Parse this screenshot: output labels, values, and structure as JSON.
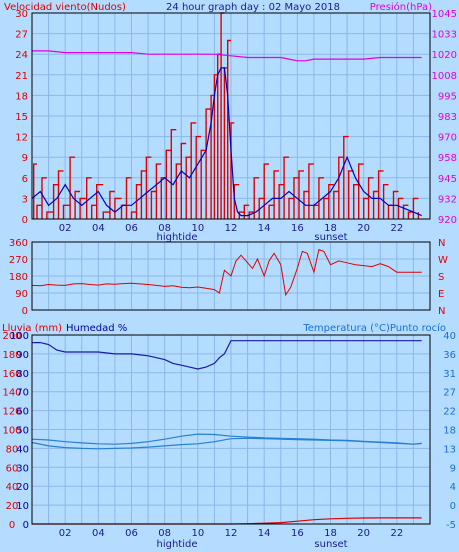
{
  "chart_data": [
    {
      "type": "line",
      "title": "24 hour graph day : 02 Mayo 2018",
      "left_label": "Velocidad viento(Nudos)",
      "right_label": "Presión(hPa)",
      "left_ticks": [
        "0",
        "3",
        "6",
        "9",
        "12",
        "15",
        "18",
        "21",
        "24",
        "27",
        "30"
      ],
      "right_ticks": [
        "920",
        "932",
        "945",
        "958",
        "970",
        "983",
        "995",
        "1008",
        "1020",
        "1033",
        "1045"
      ],
      "left_range": [
        0,
        30
      ],
      "right_range": [
        920,
        1045
      ],
      "x_ticks": [
        "02",
        "04",
        "06",
        "08",
        "10",
        "12",
        "14",
        "16",
        "18",
        "20",
        "22"
      ],
      "x_markers": {
        "hightide": "hightide",
        "sunset": "sunset"
      },
      "x_range": [
        0,
        24
      ],
      "series": [
        {
          "color": "#e00000",
          "axis": "left",
          "style": "gust-bars",
          "x": [
            0.1,
            0.3,
            0.6,
            0.9,
            1.3,
            1.6,
            1.9,
            2.3,
            2.6,
            2.9,
            3.3,
            3.6,
            3.9,
            4.3,
            4.7,
            5.0,
            5.4,
            5.7,
            6.0,
            6.3,
            6.6,
            6.9,
            7.2,
            7.5,
            7.8,
            8.1,
            8.4,
            8.7,
            9.0,
            9.3,
            9.6,
            9.9,
            10.2,
            10.5,
            10.8,
            11.0,
            11.2,
            11.4,
            11.6,
            11.8,
            12.0,
            12.2,
            12.5,
            12.8,
            13.1,
            13.4,
            13.7,
            14.0,
            14.3,
            14.6,
            14.9,
            15.2,
            15.5,
            15.8,
            16.1,
            16.4,
            16.7,
            17.0,
            17.3,
            17.6,
            17.9,
            18.2,
            18.5,
            18.8,
            19.1,
            19.4,
            19.7,
            20.0,
            20.3,
            20.6,
            20.9,
            21.2,
            21.5,
            21.8,
            22.1,
            22.4,
            22.7,
            23.0,
            23.3
          ],
          "y": [
            8,
            2,
            6,
            1,
            5,
            7,
            2,
            9,
            4,
            3,
            6,
            2,
            5,
            1,
            4,
            3,
            2,
            6,
            1,
            5,
            7,
            9,
            4,
            8,
            6,
            10,
            13,
            8,
            11,
            9,
            14,
            12,
            10,
            16,
            18,
            21,
            24,
            30,
            22,
            26,
            14,
            5,
            1,
            2,
            1,
            6,
            3,
            8,
            2,
            7,
            5,
            9,
            3,
            6,
            7,
            4,
            8,
            2,
            6,
            3,
            5,
            4,
            9,
            12,
            7,
            5,
            8,
            3,
            6,
            4,
            7,
            5,
            2,
            4,
            3,
            2,
            1,
            3,
            1
          ]
        },
        {
          "color": "#0000c0",
          "axis": "left",
          "style": "line",
          "x": [
            0,
            0.5,
            1.0,
            1.5,
            2.0,
            2.5,
            3.0,
            3.5,
            4.0,
            4.5,
            5.0,
            5.5,
            6.0,
            6.5,
            7.0,
            7.5,
            8.0,
            8.5,
            9.0,
            9.5,
            10.0,
            10.5,
            10.8,
            11.0,
            11.2,
            11.4,
            11.6,
            11.8,
            12.0,
            12.2,
            12.4,
            12.6,
            13.0,
            13.5,
            14.0,
            14.5,
            15.0,
            15.5,
            16.0,
            16.5,
            17.0,
            17.5,
            18.0,
            18.5,
            19.0,
            19.5,
            20.0,
            20.5,
            21.0,
            21.5,
            22.0,
            22.5,
            23.0,
            23.5
          ],
          "y": [
            3,
            4,
            2,
            3,
            5,
            3,
            2,
            3,
            4,
            2,
            1,
            2,
            2,
            3,
            4,
            5,
            6,
            5,
            7,
            6,
            8,
            10,
            14,
            18,
            21,
            22,
            22,
            18,
            10,
            3,
            1,
            0.5,
            0.5,
            1,
            2,
            3,
            3,
            4,
            3,
            2,
            2,
            3,
            4,
            6,
            9,
            6,
            4,
            3,
            3,
            2,
            2,
            1.5,
            1,
            0.5
          ]
        },
        {
          "color": "#e000e0",
          "axis": "right",
          "style": "line",
          "x": [
            0,
            1,
            2,
            3,
            4,
            5,
            6,
            7,
            8,
            9,
            10,
            11,
            12,
            13,
            14,
            15,
            15.5,
            16,
            16.5,
            17,
            18,
            19,
            20,
            21,
            22,
            23,
            23.5
          ],
          "y": [
            1022,
            1022,
            1021,
            1021,
            1021,
            1021,
            1021,
            1020,
            1020,
            1020,
            1020,
            1020,
            1019,
            1018,
            1018,
            1018,
            1017,
            1016,
            1016,
            1017,
            1017,
            1017,
            1017,
            1018,
            1018,
            1018,
            1018
          ]
        }
      ]
    },
    {
      "type": "line",
      "left_ticks": [
        "0",
        "90",
        "180",
        "270",
        "360"
      ],
      "left_range": [
        0,
        360
      ],
      "right_ticks": [
        "N",
        "E",
        "S",
        "W",
        "N"
      ],
      "x_range": [
        0,
        24
      ],
      "series": [
        {
          "color": "#e00000",
          "axis": "left",
          "style": "line",
          "x": [
            0,
            0.5,
            1,
            1.5,
            2,
            2.5,
            3,
            3.5,
            4,
            4.5,
            5,
            5.5,
            6,
            6.5,
            7,
            7.5,
            8,
            8.5,
            9,
            9.5,
            10,
            10.5,
            11,
            11.3,
            11.6,
            12,
            12.3,
            12.6,
            13,
            13.3,
            13.6,
            14,
            14.3,
            14.6,
            15,
            15.3,
            15.6,
            16,
            16.3,
            16.6,
            17,
            17.3,
            17.6,
            18,
            18.5,
            19,
            19.5,
            20,
            20.5,
            21,
            21.5,
            22,
            22.5,
            23,
            23.5
          ],
          "y": [
            130,
            128,
            135,
            132,
            130,
            138,
            140,
            135,
            132,
            138,
            136,
            140,
            142,
            138,
            135,
            130,
            125,
            128,
            120,
            118,
            122,
            115,
            108,
            90,
            210,
            180,
            260,
            290,
            250,
            220,
            270,
            180,
            260,
            300,
            240,
            80,
            120,
            220,
            310,
            300,
            200,
            320,
            310,
            240,
            260,
            250,
            240,
            235,
            230,
            245,
            230,
            200,
            200,
            200,
            200
          ]
        }
      ]
    },
    {
      "type": "line",
      "left_label_red": "Lluvia (mm)",
      "left_label_blue": "Humedad %",
      "right_label": "Temperatura (°C)Punto rocío",
      "rain_ticks": [
        "0",
        "20",
        "40",
        "60",
        "80",
        "100",
        "120",
        "140",
        "160",
        "180",
        "200"
      ],
      "rain_range": [
        0,
        200
      ],
      "hum_ticks": [
        "0",
        "10",
        "20",
        "30",
        "40",
        "50",
        "60",
        "70",
        "80",
        "90",
        "100"
      ],
      "hum_range": [
        0,
        100
      ],
      "temp_ticks": [
        "-5",
        "0",
        "4",
        "9",
        "13",
        "18",
        "22",
        "27",
        "31",
        "36",
        "40"
      ],
      "temp_range": [
        -5,
        40
      ],
      "x_ticks": [
        "02",
        "04",
        "06",
        "08",
        "10",
        "12",
        "14",
        "16",
        "18",
        "20",
        "22"
      ],
      "x_markers": {
        "hightide": "hightide",
        "sunset": "sunset"
      },
      "x_range": [
        0,
        24
      ],
      "series": [
        {
          "color": "#1a1aa0",
          "axis": "humidity",
          "style": "line",
          "x": [
            0,
            0.5,
            1,
            1.5,
            2,
            3,
            4,
            5,
            6,
            7,
            8,
            8.5,
            9,
            9.5,
            10,
            10.5,
            11,
            11.3,
            11.6,
            12,
            13,
            14,
            15,
            16,
            17,
            18,
            19,
            20,
            21,
            22,
            23,
            23.5
          ],
          "y": [
            96,
            96,
            95,
            92,
            91,
            91,
            91,
            90,
            90,
            89,
            87,
            85,
            84,
            83,
            82,
            83,
            85,
            88,
            90,
            97,
            97,
            97,
            97,
            97,
            97,
            97,
            97,
            97,
            97,
            97,
            97,
            97
          ]
        },
        {
          "color": "#2a7fd0",
          "axis": "temperature",
          "style": "line",
          "x": [
            0,
            1,
            2,
            3,
            4,
            5,
            6,
            7,
            8,
            9,
            10,
            11,
            12,
            13,
            14,
            15,
            16,
            17,
            18,
            19,
            20,
            21,
            22,
            23,
            23.5
          ],
          "y": [
            15.2,
            15.0,
            14.6,
            14.3,
            14.1,
            14.0,
            14.2,
            14.6,
            15.2,
            15.9,
            16.4,
            16.3,
            15.9,
            15.7,
            15.5,
            15.4,
            15.3,
            15.2,
            15.0,
            14.9,
            14.7,
            14.5,
            14.3,
            14.0,
            14.2
          ]
        },
        {
          "color": "#2a7fd0",
          "axis": "temperature",
          "style": "line",
          "x": [
            0,
            1,
            2,
            3,
            4,
            5,
            6,
            7,
            8,
            9,
            10,
            11,
            12,
            13,
            14,
            15,
            16,
            17,
            18,
            19,
            20,
            21,
            22,
            23,
            23.5
          ],
          "y": [
            14.4,
            13.6,
            13.2,
            13.0,
            12.9,
            13.0,
            13.1,
            13.3,
            13.6,
            13.9,
            14.1,
            14.6,
            15.3,
            15.4,
            15.3,
            15.2,
            15.1,
            15.0,
            14.9,
            14.8,
            14.6,
            14.4,
            14.2,
            14.0,
            14.2
          ]
        },
        {
          "color": "#e00000",
          "axis": "rain",
          "style": "line",
          "x": [
            0,
            2,
            4,
            6,
            8,
            10,
            11,
            12,
            13,
            14,
            15,
            16,
            17,
            18,
            19,
            20,
            21,
            22,
            23,
            23.5
          ],
          "y": [
            0,
            0,
            0,
            0,
            0,
            0,
            0,
            0,
            0.3,
            0.8,
            1.5,
            3,
            4.5,
            5.5,
            6,
            6.3,
            6.5,
            6.5,
            6.5,
            6.5
          ]
        }
      ]
    }
  ]
}
